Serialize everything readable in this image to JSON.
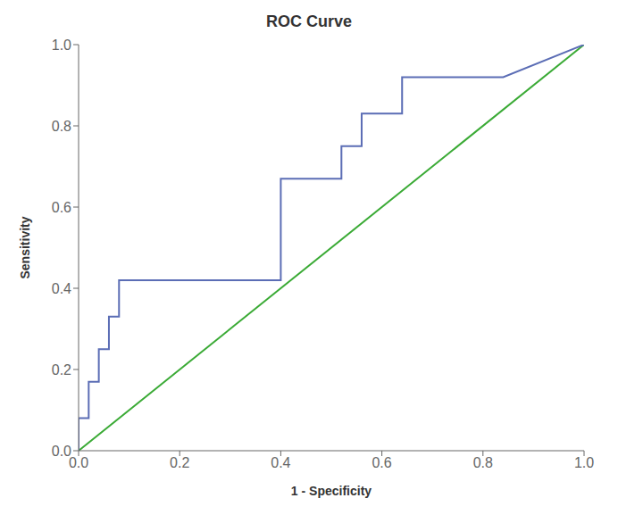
{
  "chart_data": {
    "type": "line",
    "title": "ROC Curve",
    "xlabel": "1 - Specificity",
    "ylabel": "Sensitivity",
    "xlim": [
      0.0,
      1.0
    ],
    "ylim": [
      0.0,
      1.0
    ],
    "xticks": [
      {
        "value": 0.0,
        "label": "0.0"
      },
      0.2,
      0.4,
      0.6,
      0.8,
      {
        "value": 1.0,
        "label": "1.0"
      }
    ],
    "yticks": [
      {
        "value": 0.0,
        "label": "0.0"
      },
      0.2,
      0.4,
      0.6,
      0.8,
      {
        "value": 1.0,
        "label": "1.0"
      }
    ],
    "grid": false,
    "series": [
      {
        "color": "#3aaa35",
        "x": [
          0,
          1
        ],
        "values": [
          0,
          1
        ]
      },
      {
        "color": "#5b6db5",
        "x": [
          0.0,
          0.0,
          0.02,
          0.02,
          0.04,
          0.04,
          0.06,
          0.06,
          0.08,
          0.08,
          0.1,
          0.1,
          0.12,
          0.12,
          0.14,
          0.14,
          0.4,
          0.4,
          0.44,
          0.44,
          0.48,
          0.48,
          0.52,
          0.52,
          0.56,
          0.56,
          0.6,
          0.6,
          0.64,
          0.64,
          0.84,
          0.84,
          1.0
        ],
        "values": [
          0.0,
          0.08,
          0.08,
          0.17,
          0.17,
          0.25,
          0.25,
          0.33,
          0.33,
          0.42,
          0.42,
          0.42,
          0.42,
          0.42,
          0.42,
          0.42,
          0.42,
          0.67,
          0.67,
          0.67,
          0.67,
          0.67,
          0.67,
          0.75,
          0.75,
          0.83,
          0.83,
          0.83,
          0.83,
          0.92,
          0.92,
          0.92,
          1.0
        ]
      }
    ]
  }
}
